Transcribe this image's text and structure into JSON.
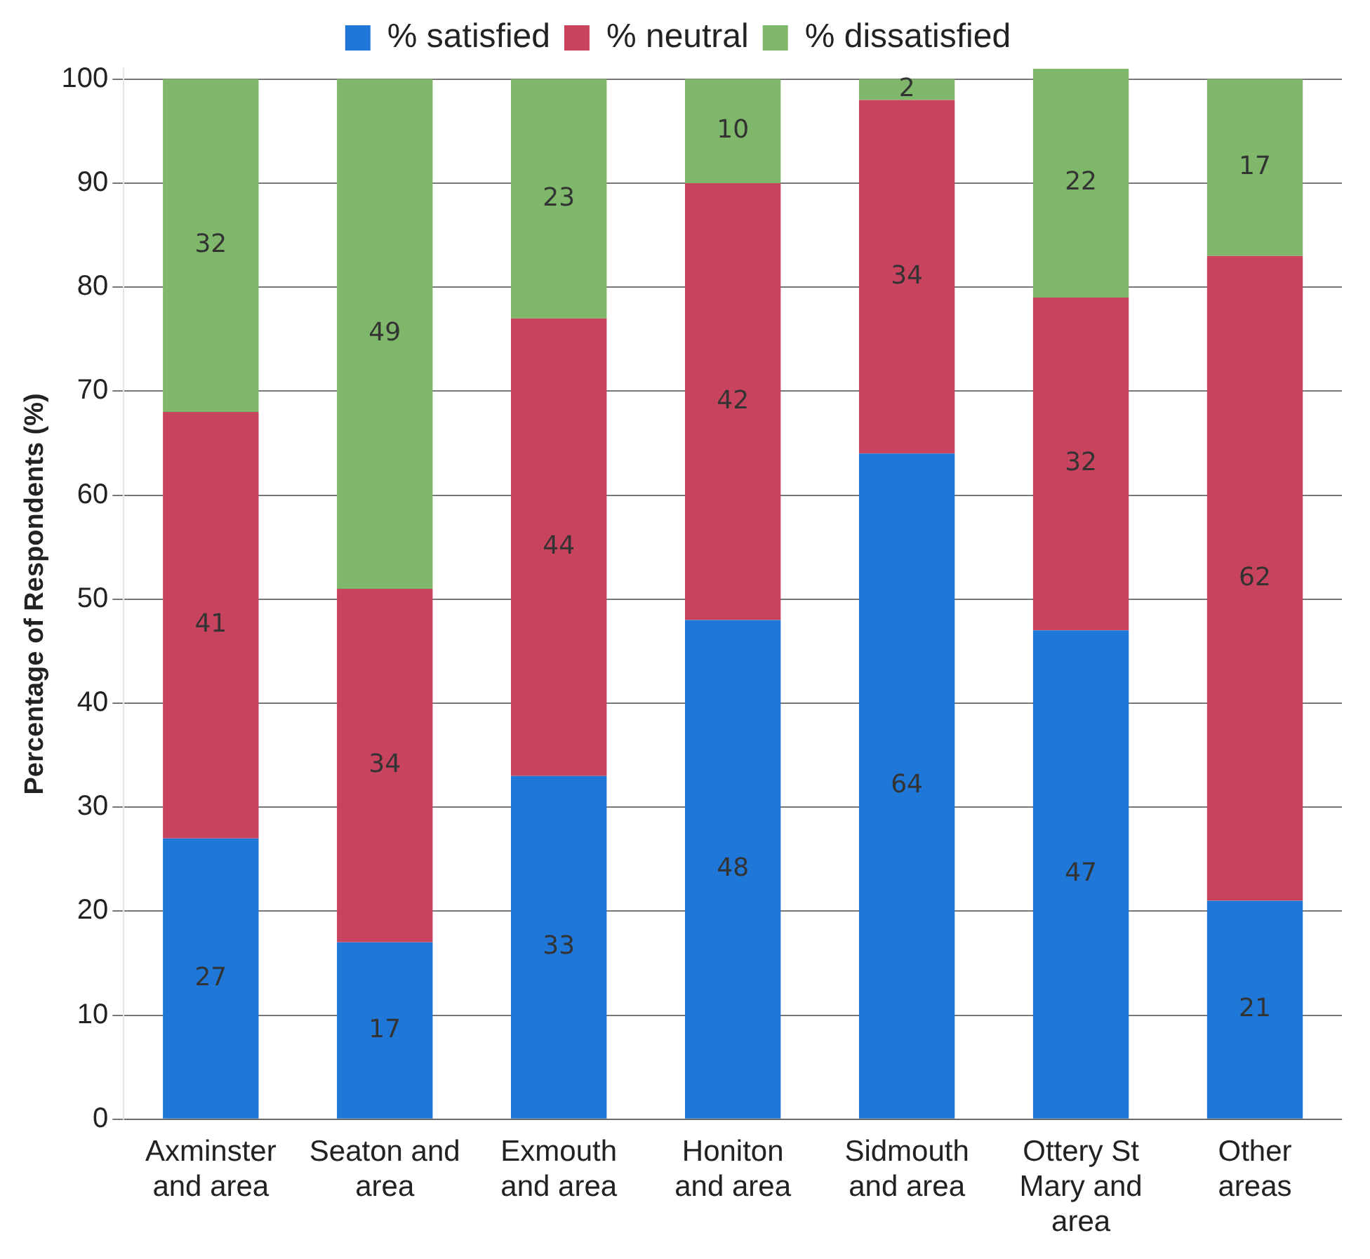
{
  "chart_data": {
    "type": "bar",
    "stacked": true,
    "ylabel": "Percentage of Respondents (%)",
    "categories": [
      "Axminster and area",
      "Seaton and area",
      "Exmouth and area",
      "Honiton and area",
      "Sidmouth and area",
      "Ottery St Mary and area",
      "Other areas"
    ],
    "series": [
      {
        "name": "% satisfied",
        "color": "#1f77d8",
        "values": [
          27,
          17,
          33,
          48,
          64,
          47,
          21
        ]
      },
      {
        "name": "% neutral",
        "color": "#c8445e",
        "values": [
          41,
          34,
          44,
          42,
          34,
          32,
          62
        ]
      },
      {
        "name": "% dissatisfied",
        "color": "#7fb86a",
        "values": [
          32,
          49,
          23,
          10,
          2,
          22,
          17
        ]
      }
    ],
    "ylim": [
      0,
      101
    ],
    "yticks": [
      0,
      10,
      20,
      30,
      40,
      50,
      60,
      70,
      80,
      90,
      100
    ],
    "grid": "y",
    "legend": "top",
    "data_labels": true
  }
}
